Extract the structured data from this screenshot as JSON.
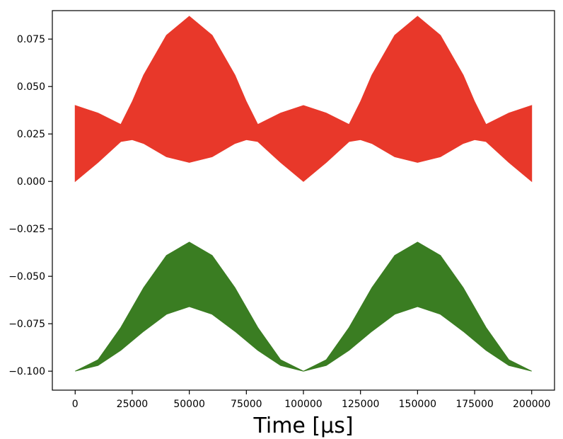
{
  "chart_data": {
    "type": "area",
    "title": "",
    "xlabel": "Time [µs]",
    "ylabel": "",
    "xlim": [
      -10000,
      210000
    ],
    "ylim": [
      -0.11,
      0.09
    ],
    "grid": false,
    "legend": "none",
    "x_ticks": [
      0,
      25000,
      50000,
      75000,
      100000,
      125000,
      150000,
      175000,
      200000
    ],
    "x_tick_labels": [
      "0",
      "25000",
      "50000",
      "75000",
      "100000",
      "125000",
      "150000",
      "175000",
      "200000"
    ],
    "y_ticks": [
      0.075,
      0.05,
      0.025,
      0.0,
      -0.025,
      -0.05,
      -0.075,
      -0.1
    ],
    "y_tick_labels": [
      "0.075",
      "0.050",
      "0.025",
      "0.000",
      "−0.025",
      "−0.050",
      "−0.075",
      "−0.100"
    ],
    "series": [
      {
        "color": "#e8382a",
        "x": [
          0,
          10000,
          20000,
          25000,
          30000,
          40000,
          50000,
          60000,
          70000,
          75000,
          80000,
          90000,
          100000,
          110000,
          120000,
          125000,
          130000,
          140000,
          150000,
          160000,
          170000,
          175000,
          180000,
          190000,
          200000
        ],
        "upper": [
          0.04,
          0.036,
          0.03,
          0.042,
          0.056,
          0.077,
          0.087,
          0.077,
          0.056,
          0.042,
          0.03,
          0.036,
          0.04,
          0.036,
          0.03,
          0.042,
          0.056,
          0.077,
          0.087,
          0.077,
          0.056,
          0.042,
          0.03,
          0.036,
          0.04
        ],
        "lower": [
          0.0,
          0.01,
          0.021,
          0.022,
          0.02,
          0.013,
          0.01,
          0.013,
          0.02,
          0.022,
          0.021,
          0.01,
          0.0,
          0.01,
          0.021,
          0.022,
          0.02,
          0.013,
          0.01,
          0.013,
          0.02,
          0.022,
          0.021,
          0.01,
          0.0
        ]
      },
      {
        "color": "#3a7d22",
        "x": [
          0,
          10000,
          20000,
          30000,
          40000,
          50000,
          60000,
          70000,
          80000,
          90000,
          100000,
          110000,
          120000,
          130000,
          140000,
          150000,
          160000,
          170000,
          180000,
          190000,
          200000
        ],
        "upper": [
          -0.1,
          -0.094,
          -0.077,
          -0.056,
          -0.039,
          -0.032,
          -0.039,
          -0.056,
          -0.077,
          -0.094,
          -0.1,
          -0.094,
          -0.077,
          -0.056,
          -0.039,
          -0.032,
          -0.039,
          -0.056,
          -0.077,
          -0.094,
          -0.1
        ],
        "lower": [
          -0.1,
          -0.097,
          -0.089,
          -0.079,
          -0.07,
          -0.066,
          -0.07,
          -0.079,
          -0.089,
          -0.097,
          -0.1,
          -0.097,
          -0.089,
          -0.079,
          -0.07,
          -0.066,
          -0.07,
          -0.079,
          -0.089,
          -0.097,
          -0.1
        ]
      }
    ]
  }
}
